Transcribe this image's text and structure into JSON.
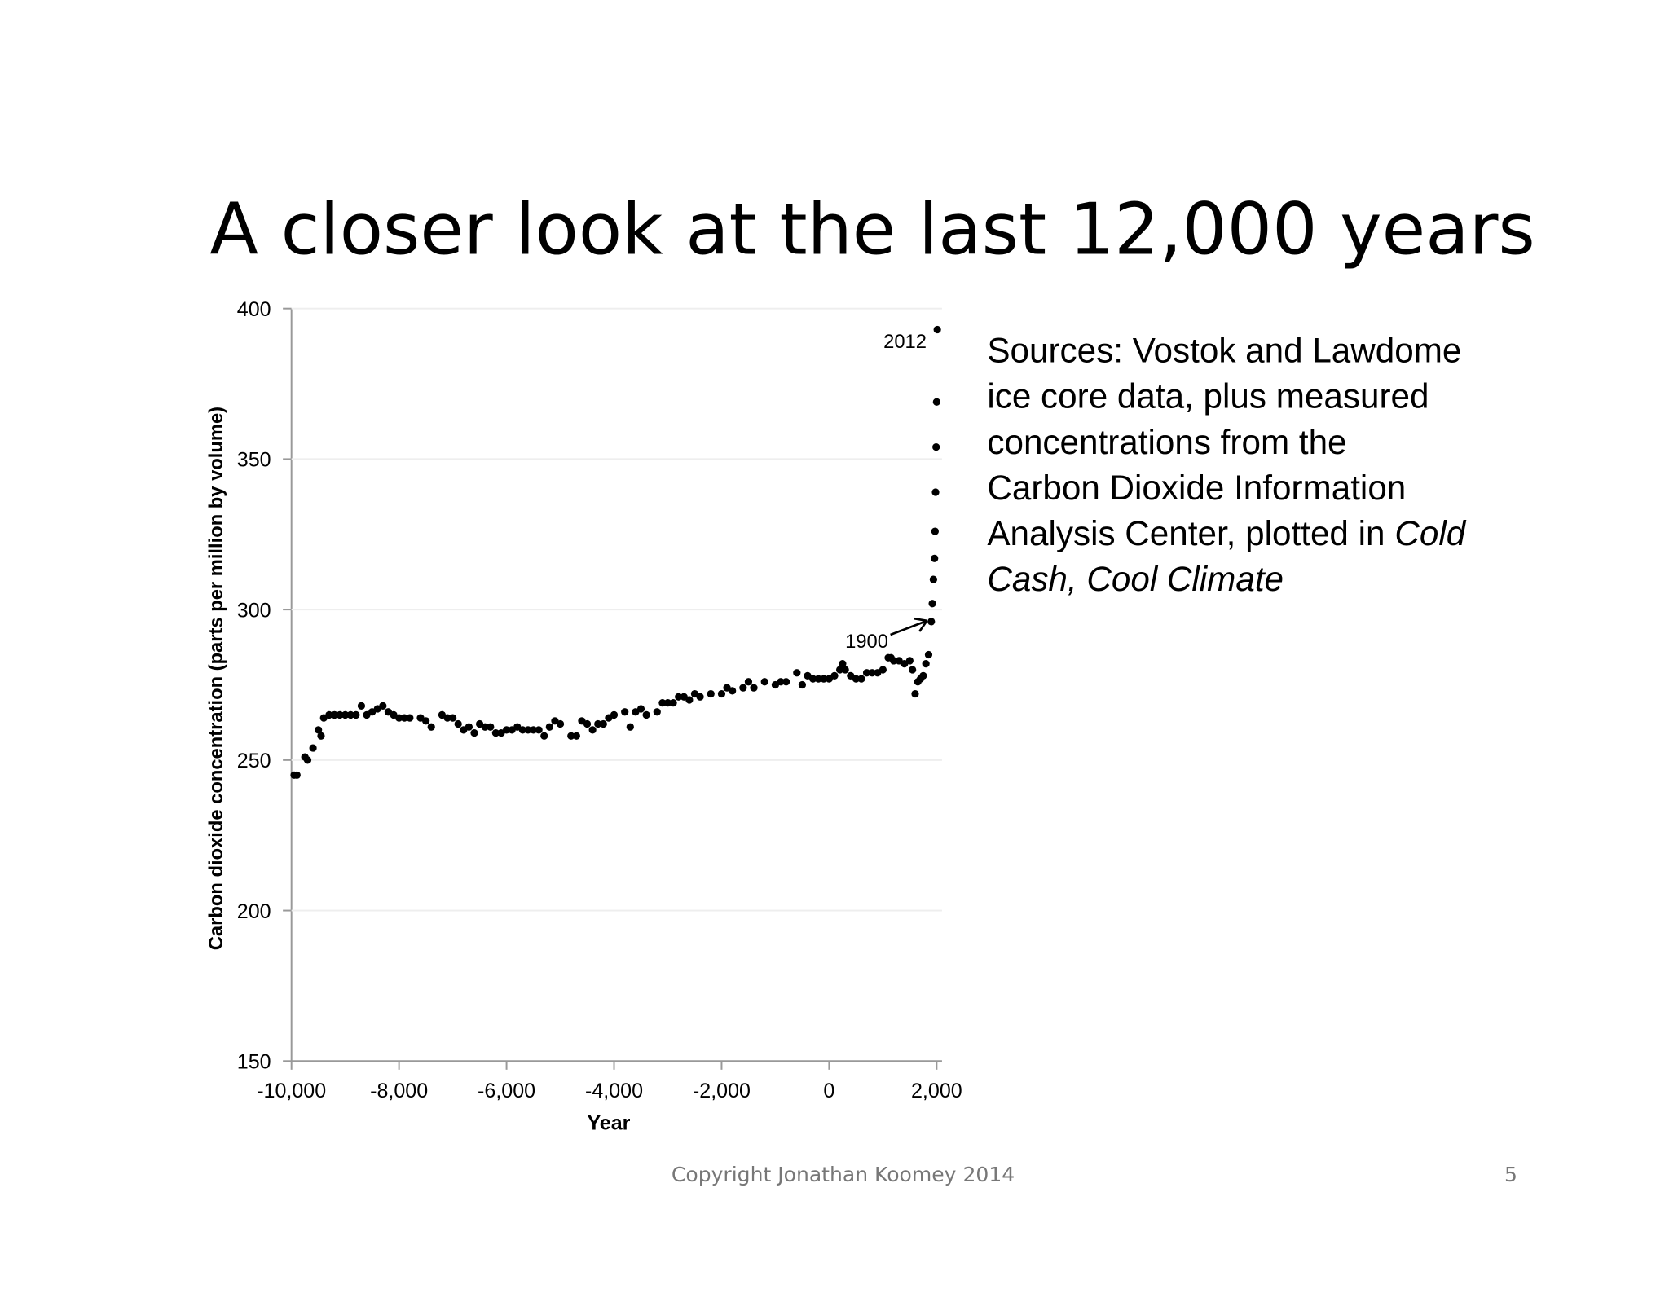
{
  "slide_title": "A closer look at the last 12,000 years",
  "footer": "Copyright Jonathan Koomey 2014",
  "page_number": "5",
  "sources": {
    "lines": [
      "Sources:  Vostok and Lawdome",
      "ice core data, plus measured",
      "concentrations from the",
      "Carbon Dioxide Information",
      "Analysis Center, plotted in"
    ],
    "italic_lines": [
      "Cold",
      "Cash, Cool Climate"
    ]
  },
  "chart_data": {
    "type": "scatter",
    "xlabel": "Year",
    "ylabel": "Carbon dioxide concentration (parts per million by volume)",
    "xlim": [
      -10000,
      2000
    ],
    "ylim": [
      150,
      400
    ],
    "xticks": [
      {
        "value": -10000,
        "label": "-10,000"
      },
      {
        "value": -8000,
        "label": "-8,000"
      },
      {
        "value": -6000,
        "label": "-6,000"
      },
      {
        "value": -4000,
        "label": "-4,000"
      },
      {
        "value": -2000,
        "label": "-2,000"
      },
      0,
      {
        "value": 2000,
        "label": "2,000"
      }
    ],
    "yticks": [
      150,
      200,
      250,
      300,
      350,
      400
    ],
    "grid": true,
    "color": "#000000",
    "annotations": [
      {
        "text": "2012",
        "x": 2012,
        "y": 393
      },
      {
        "text": "1900",
        "x": 1900,
        "y": 297
      }
    ],
    "x": [
      -9950,
      -9900,
      -9750,
      -9700,
      -9600,
      -9500,
      -9450,
      -9400,
      -9300,
      -9200,
      -9100,
      -9000,
      -8900,
      -8800,
      -8700,
      -8600,
      -8500,
      -8400,
      -8300,
      -8200,
      -8100,
      -8000,
      -7900,
      -7800,
      -7600,
      -7500,
      -7400,
      -7200,
      -7100,
      -7000,
      -6900,
      -6800,
      -6700,
      -6600,
      -6500,
      -6400,
      -6300,
      -6200,
      -6100,
      -6000,
      -5900,
      -5800,
      -5700,
      -5600,
      -5500,
      -5400,
      -5300,
      -5200,
      -5100,
      -5000,
      -4800,
      -4700,
      -4600,
      -4500,
      -4400,
      -4300,
      -4200,
      -4100,
      -4000,
      -3800,
      -3700,
      -3600,
      -3500,
      -3400,
      -3200,
      -3100,
      -3000,
      -2900,
      -2800,
      -2700,
      -2600,
      -2500,
      -2400,
      -2200,
      -2000,
      -1900,
      -1800,
      -1600,
      -1500,
      -1400,
      -1200,
      -1000,
      -900,
      -800,
      -600,
      -500,
      -400,
      -300,
      -200,
      -100,
      0,
      100,
      200,
      250,
      300,
      400,
      500,
      600,
      700,
      800,
      900,
      1000,
      1100,
      1150,
      1200,
      1300,
      1400,
      1500,
      1550,
      1600,
      1650,
      1700,
      1750,
      1800,
      1850,
      1900,
      1920,
      1940,
      1960,
      1970,
      1980,
      1990,
      2000,
      2012
    ],
    "values": [
      245,
      245,
      251,
      250,
      254,
      260,
      258,
      264,
      265,
      265,
      265,
      265,
      265,
      265,
      268,
      265,
      266,
      267,
      268,
      266,
      265,
      264,
      264,
      264,
      264,
      263,
      261,
      265,
      264,
      264,
      262,
      260,
      261,
      259,
      262,
      261,
      261,
      259,
      259,
      260,
      260,
      261,
      260,
      260,
      260,
      260,
      258,
      261,
      263,
      262,
      258,
      258,
      263,
      262,
      260,
      262,
      262,
      264,
      265,
      266,
      261,
      266,
      267,
      265,
      266,
      269,
      269,
      269,
      271,
      271,
      270,
      272,
      271,
      272,
      272,
      274,
      273,
      274,
      276,
      274,
      276,
      275,
      276,
      276,
      279,
      275,
      278,
      277,
      277,
      277,
      277,
      278,
      280,
      282,
      280,
      278,
      277,
      277,
      279,
      279,
      279,
      280,
      284,
      284,
      283,
      283,
      282,
      283,
      280,
      272,
      276,
      277,
      278,
      282,
      285,
      296,
      302,
      310,
      317,
      326,
      339,
      354,
      369,
      393
    ]
  }
}
